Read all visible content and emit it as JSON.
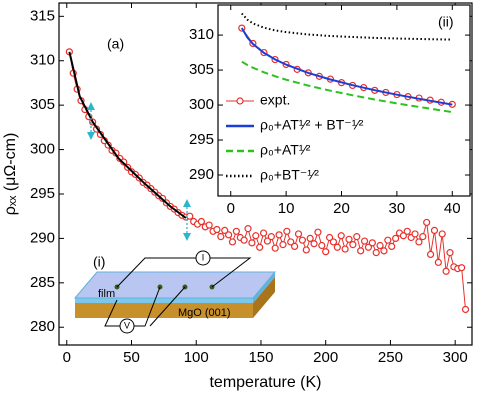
{
  "chart_data": [
    {
      "type": "line",
      "xlabel": "temperature (K)",
      "ylabel": "ρₓₓ (μΩ-cm)",
      "xlim": [
        -6,
        313
      ],
      "ylim": [
        278,
        316.5
      ],
      "xticks": [
        0,
        50,
        100,
        150,
        200,
        250,
        300
      ],
      "yticks": [
        280,
        285,
        290,
        295,
        300,
        305,
        310,
        315
      ],
      "annotations": [
        "(a)",
        "(i)",
        "film",
        "MgO (001)",
        "I",
        "V"
      ],
      "series": [
        {
          "name": "expt.",
          "color": "#e8302b",
          "marker": "circle",
          "linestyle": "solid",
          "x": [
            2,
            5,
            8,
            11,
            14,
            17,
            20,
            23,
            26,
            29,
            32,
            35,
            38,
            41,
            44,
            47,
            50,
            53,
            56,
            59,
            62,
            65,
            68,
            71,
            74,
            77,
            80,
            83,
            86,
            89,
            92,
            95,
            98,
            101,
            104,
            107,
            110,
            113,
            116,
            119,
            122,
            125,
            128,
            131,
            134,
            137,
            140,
            143,
            146,
            149,
            152,
            155,
            158,
            161,
            164,
            167,
            170,
            173,
            176,
            179,
            182,
            185,
            188,
            191,
            194,
            197,
            200,
            203,
            206,
            209,
            212,
            215,
            218,
            221,
            224,
            227,
            230,
            233,
            236,
            239,
            242,
            245,
            248,
            251,
            254,
            257,
            260,
            263,
            266,
            269,
            272,
            275,
            278,
            281,
            284,
            287,
            290,
            293,
            296,
            299,
            302,
            305,
            308
          ],
          "values": [
            311.0,
            308.6,
            306.8,
            305.5,
            304.5,
            303.7,
            303.1,
            302.3,
            301.7,
            301.0,
            300.5,
            299.9,
            299.6,
            299.0,
            298.6,
            298.0,
            297.5,
            297.2,
            296.8,
            296.3,
            296.0,
            295.6,
            295.2,
            294.8,
            294.5,
            294.0,
            293.6,
            293.3,
            292.9,
            292.6,
            292.4,
            292.5,
            291.9,
            291.6,
            291.9,
            291.3,
            291.5,
            290.8,
            291.0,
            290.2,
            290.9,
            290.4,
            289.6,
            290.8,
            290.1,
            289.8,
            291.1,
            289.5,
            290.3,
            289.0,
            290.6,
            289.7,
            290.2,
            288.9,
            290.4,
            289.3,
            290.8,
            289.6,
            289.1,
            290.5,
            289.8,
            288.7,
            290.0,
            289.4,
            290.7,
            289.2,
            288.5,
            290.1,
            289.6,
            289.0,
            290.3,
            288.8,
            289.9,
            289.3,
            290.2,
            288.6,
            289.7,
            289.0,
            289.5,
            288.4,
            289.2,
            288.6,
            289.8,
            289.1,
            290.0,
            290.6,
            290.3,
            290.8,
            290.1,
            290.5,
            289.6,
            290.2,
            291.8,
            288.2,
            290.9,
            287.3,
            290.5,
            286.3,
            288.4,
            286.8,
            286.6,
            286.7,
            282.0
          ]
        },
        {
          "color": "#000000",
          "marker": "none",
          "linestyle": "solid",
          "x": [
            2,
            10,
            20,
            40,
            60,
            80,
            92
          ],
          "values": [
            311.0,
            306.0,
            303.1,
            299.0,
            296.2,
            293.6,
            292.3
          ]
        }
      ]
    },
    {
      "type": "line",
      "xlim": [
        -2.3,
        43.2
      ],
      "ylim": [
        287,
        314.3
      ],
      "xticks": [
        0,
        10,
        20,
        30,
        40
      ],
      "yticks": [
        290,
        295,
        300,
        305,
        310
      ],
      "annotations": [
        "(ii)"
      ],
      "legend": "left",
      "series": [
        {
          "name": "expt.",
          "color": "#e8302b",
          "marker": "circle",
          "linestyle": "solid",
          "x": [
            2,
            4,
            6,
            8,
            10,
            12,
            14,
            16,
            18,
            20,
            22,
            24,
            26,
            28,
            30,
            32,
            34,
            36,
            38,
            40
          ],
          "values": [
            311.0,
            308.8,
            307.5,
            306.5,
            305.8,
            305.1,
            304.6,
            304.1,
            303.7,
            303.2,
            302.8,
            302.5,
            302.1,
            301.8,
            301.5,
            301.2,
            301.0,
            300.7,
            300.4,
            300.1
          ]
        },
        {
          "name": "ρ₀+AT¹⁄² + BT⁻¹⁄²",
          "color": "#1a3fd8",
          "marker": "none",
          "linestyle": "solid",
          "x": [
            2,
            3,
            4,
            6,
            8,
            10,
            14,
            18,
            22,
            26,
            30,
            35,
            40
          ],
          "values": [
            311.01,
            309.66,
            308.74,
            307.46,
            306.52,
            305.78,
            304.6,
            303.65,
            302.84,
            302.12,
            301.48,
            300.75,
            300.07
          ]
        },
        {
          "name": "ρ₀+AT¹⁄²",
          "color": "#2bc21e",
          "marker": "none",
          "linestyle": "dashed",
          "x": [
            2,
            3,
            4,
            6,
            8,
            10,
            14,
            18,
            22,
            26,
            30,
            35,
            40
          ],
          "values": [
            306.2,
            305.73,
            305.34,
            304.68,
            304.12,
            303.63,
            302.78,
            302.05,
            301.39,
            300.79,
            300.24,
            299.6,
            298.99
          ]
        },
        {
          "name": "ρ₀+BT⁻¹⁄²",
          "color": "#000000",
          "marker": "none",
          "linestyle": "dotted",
          "x": [
            2,
            3,
            4,
            6,
            8,
            10,
            14,
            18,
            22,
            26,
            30,
            35,
            40
          ],
          "values": [
            313.08,
            312.2,
            311.67,
            311.05,
            310.67,
            310.42,
            310.09,
            309.87,
            309.72,
            309.6,
            309.51,
            309.42,
            309.35
          ]
        }
      ]
    }
  ]
}
